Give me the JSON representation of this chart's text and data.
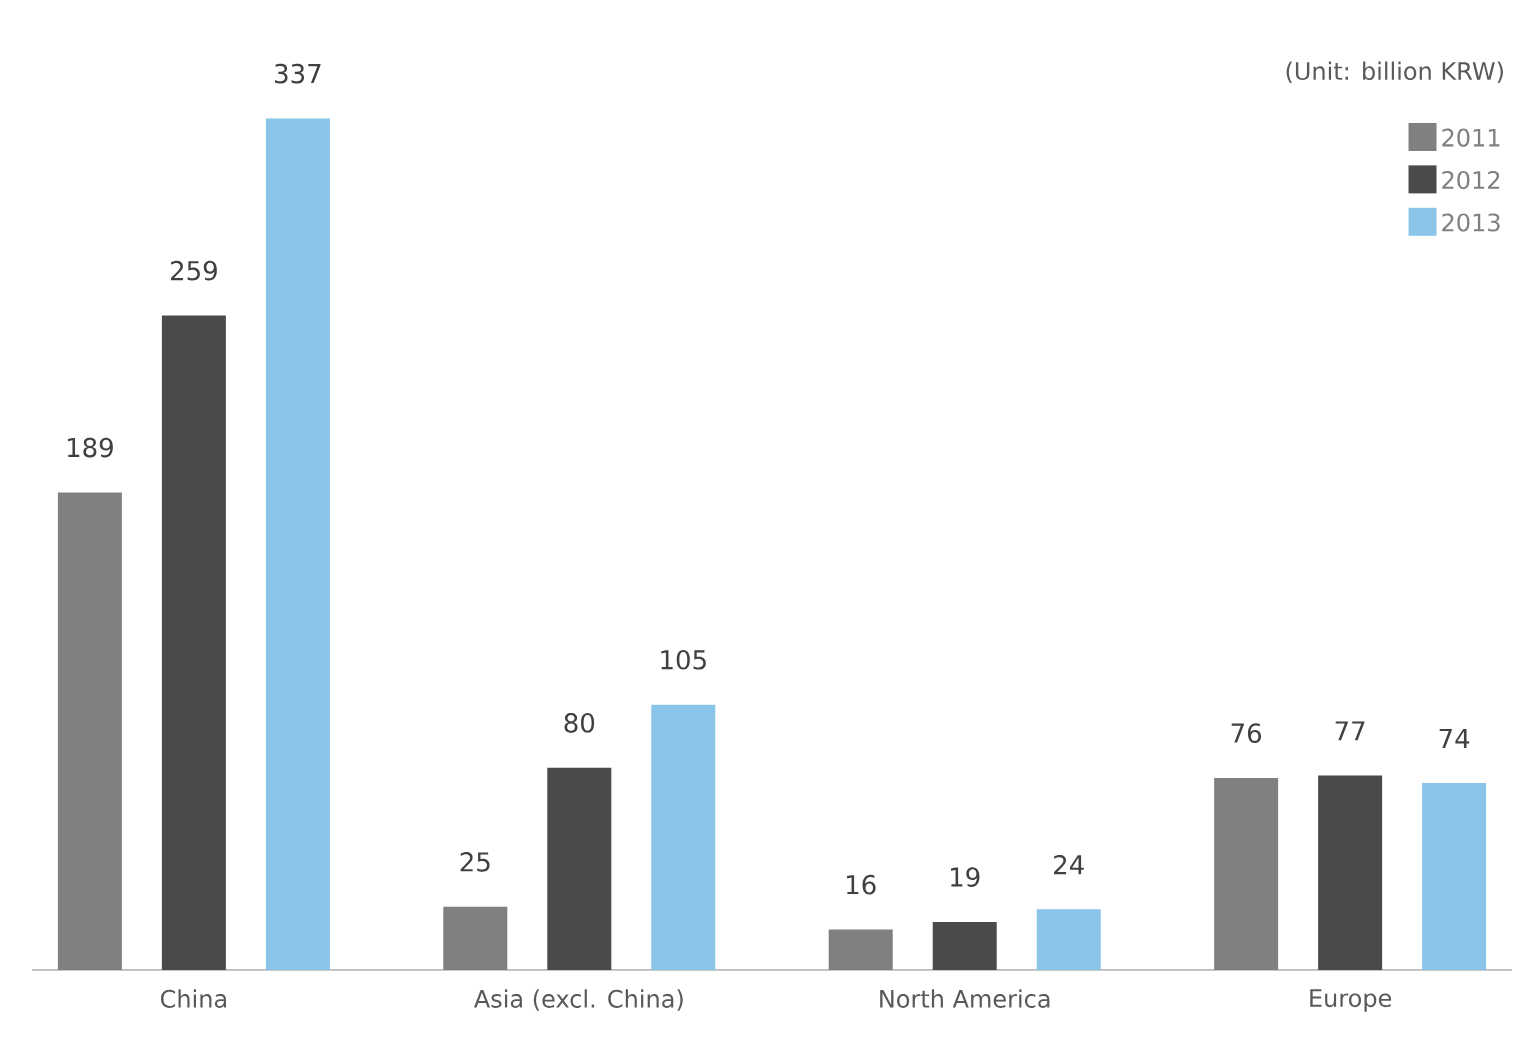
{
  "chart_data": {
    "type": "bar",
    "categories": [
      "China",
      "Asia (excl. China)",
      "North America",
      "Europe"
    ],
    "series": [
      {
        "name": "2011",
        "color": "#808083",
        "values": [
          189,
          25,
          16,
          76
        ]
      },
      {
        "name": "2012",
        "color": "#4a4a4c",
        "values": [
          259,
          80,
          19,
          77
        ]
      },
      {
        "name": "2013",
        "color": "#8ac4e8",
        "values": [
          337,
          105,
          24,
          74
        ]
      }
    ],
    "data_labels": true,
    "legend": "top right",
    "annotations": [
      "(Unit: billion KRW)"
    ]
  }
}
